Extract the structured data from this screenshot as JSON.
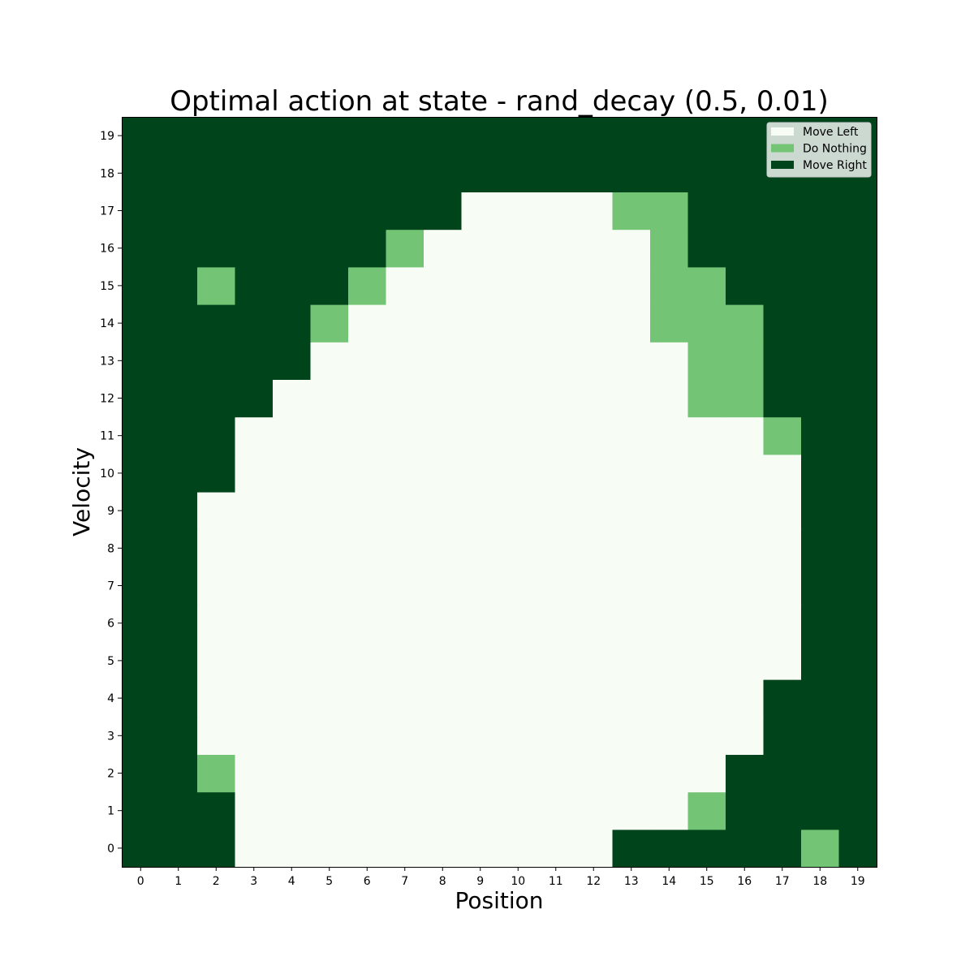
{
  "chart_data": {
    "type": "heatmap",
    "title": "Optimal action at state - rand_decay (0.5, 0.01)",
    "xlabel": "Position",
    "ylabel": "Velocity",
    "x": [
      0,
      1,
      2,
      3,
      4,
      5,
      6,
      7,
      8,
      9,
      10,
      11,
      12,
      13,
      14,
      15,
      16,
      17,
      18,
      19
    ],
    "y": [
      0,
      1,
      2,
      3,
      4,
      5,
      6,
      7,
      8,
      9,
      10,
      11,
      12,
      13,
      14,
      15,
      16,
      17,
      18,
      19
    ],
    "legend": {
      "placement": "top-right",
      "entries": [
        {
          "label": "Move Left",
          "color": "#f7fcf5"
        },
        {
          "label": "Do Nothing",
          "color": "#74c476"
        },
        {
          "label": "Move Right",
          "color": "#00441b"
        }
      ]
    },
    "action_codes": {
      "0": "Move Left",
      "1": "Do Nothing",
      "2": "Move Right"
    },
    "values_by_velocity": [
      [
        2,
        2,
        2,
        0,
        0,
        0,
        0,
        0,
        0,
        0,
        0,
        0,
        0,
        2,
        2,
        2,
        2,
        2,
        1,
        2
      ],
      [
        2,
        2,
        2,
        0,
        0,
        0,
        0,
        0,
        0,
        0,
        0,
        0,
        0,
        0,
        0,
        1,
        2,
        2,
        2,
        2
      ],
      [
        2,
        2,
        1,
        0,
        0,
        0,
        0,
        0,
        0,
        0,
        0,
        0,
        0,
        0,
        0,
        0,
        2,
        2,
        2,
        2
      ],
      [
        2,
        2,
        0,
        0,
        0,
        0,
        0,
        0,
        0,
        0,
        0,
        0,
        0,
        0,
        0,
        0,
        0,
        2,
        2,
        2
      ],
      [
        2,
        2,
        0,
        0,
        0,
        0,
        0,
        0,
        0,
        0,
        0,
        0,
        0,
        0,
        0,
        0,
        0,
        2,
        2,
        2
      ],
      [
        2,
        2,
        0,
        0,
        0,
        0,
        0,
        0,
        0,
        0,
        0,
        0,
        0,
        0,
        0,
        0,
        0,
        0,
        2,
        2
      ],
      [
        2,
        2,
        0,
        0,
        0,
        0,
        0,
        0,
        0,
        0,
        0,
        0,
        0,
        0,
        0,
        0,
        0,
        0,
        2,
        2
      ],
      [
        2,
        2,
        0,
        0,
        0,
        0,
        0,
        0,
        0,
        0,
        0,
        0,
        0,
        0,
        0,
        0,
        0,
        0,
        2,
        2
      ],
      [
        2,
        2,
        0,
        0,
        0,
        0,
        0,
        0,
        0,
        0,
        0,
        0,
        0,
        0,
        0,
        0,
        0,
        0,
        2,
        2
      ],
      [
        2,
        2,
        0,
        0,
        0,
        0,
        0,
        0,
        0,
        0,
        0,
        0,
        0,
        0,
        0,
        0,
        0,
        0,
        2,
        2
      ],
      [
        2,
        2,
        2,
        0,
        0,
        0,
        0,
        0,
        0,
        0,
        0,
        0,
        0,
        0,
        0,
        0,
        0,
        0,
        2,
        2
      ],
      [
        2,
        2,
        2,
        0,
        0,
        0,
        0,
        0,
        0,
        0,
        0,
        0,
        0,
        0,
        0,
        0,
        0,
        1,
        2,
        2
      ],
      [
        2,
        2,
        2,
        2,
        0,
        0,
        0,
        0,
        0,
        0,
        0,
        0,
        0,
        0,
        0,
        1,
        1,
        2,
        2,
        2
      ],
      [
        2,
        2,
        2,
        2,
        2,
        0,
        0,
        0,
        0,
        0,
        0,
        0,
        0,
        0,
        0,
        1,
        1,
        2,
        2,
        2
      ],
      [
        2,
        2,
        2,
        2,
        2,
        1,
        0,
        0,
        0,
        0,
        0,
        0,
        0,
        0,
        1,
        1,
        1,
        2,
        2,
        2
      ],
      [
        2,
        2,
        1,
        2,
        2,
        2,
        1,
        0,
        0,
        0,
        0,
        0,
        0,
        0,
        1,
        1,
        2,
        2,
        2,
        2
      ],
      [
        2,
        2,
        2,
        2,
        2,
        2,
        2,
        1,
        0,
        0,
        0,
        0,
        0,
        0,
        1,
        2,
        2,
        2,
        2,
        2
      ],
      [
        2,
        2,
        2,
        2,
        2,
        2,
        2,
        2,
        2,
        0,
        0,
        0,
        0,
        1,
        1,
        2,
        2,
        2,
        2,
        2
      ],
      [
        2,
        2,
        2,
        2,
        2,
        2,
        2,
        2,
        2,
        2,
        2,
        2,
        2,
        2,
        2,
        2,
        2,
        2,
        2,
        2
      ],
      [
        2,
        2,
        2,
        2,
        2,
        2,
        2,
        2,
        2,
        2,
        2,
        2,
        2,
        2,
        2,
        2,
        2,
        2,
        2,
        2
      ]
    ]
  }
}
